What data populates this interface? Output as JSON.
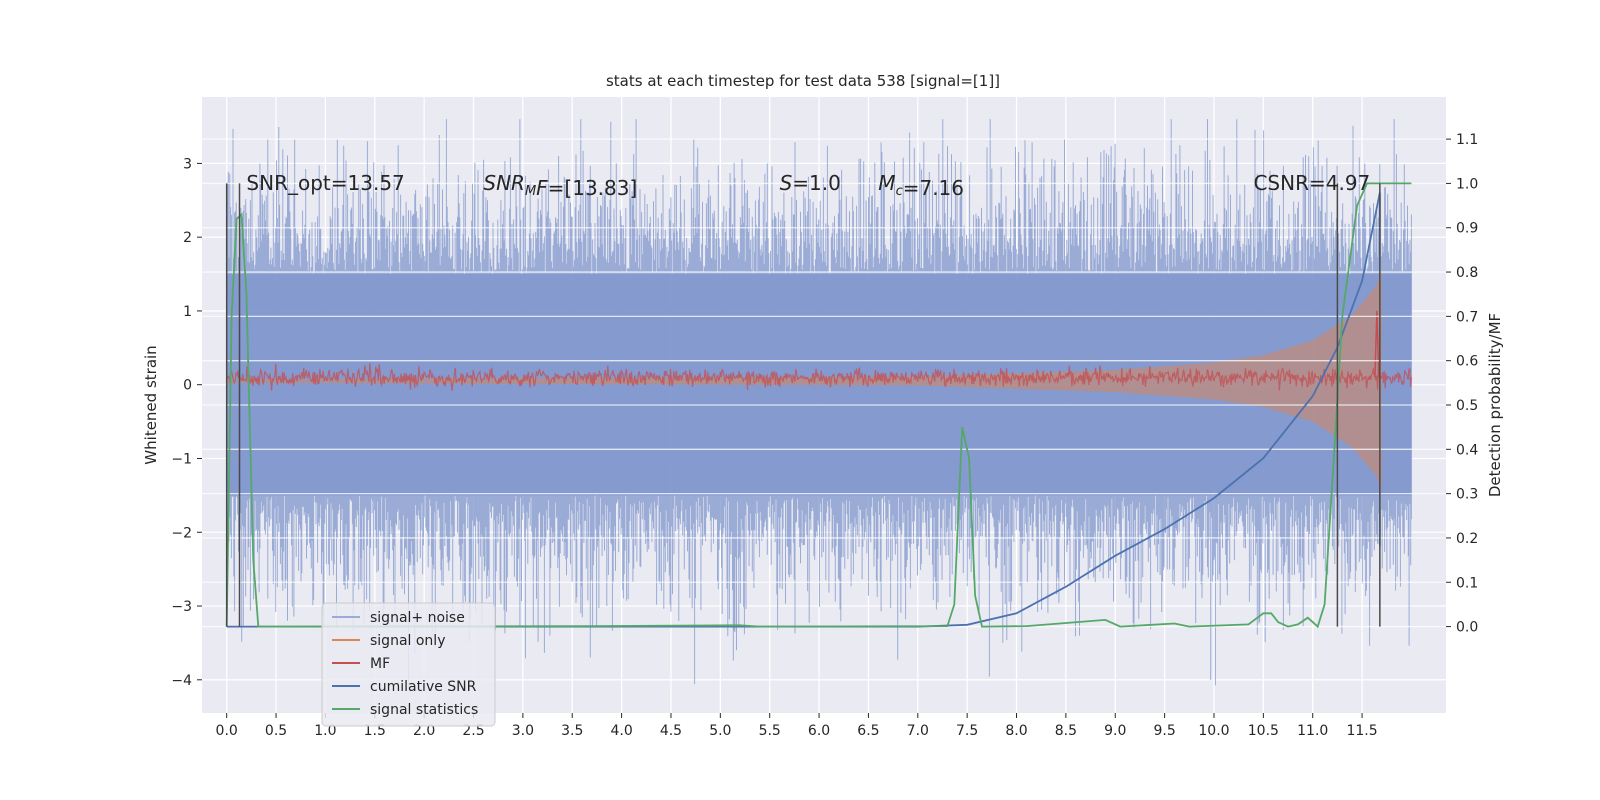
{
  "chart_data": {
    "type": "line",
    "title": "stats at each timestep for test data 538 [signal=[1]]",
    "ylabel": "Whitened strain",
    "ylabel_right": "Detection probability/MF",
    "xlim": [
      -0.25,
      12.35
    ],
    "ylim": [
      -4.45,
      3.9
    ],
    "ylim_right": [
      -0.195,
      1.195
    ],
    "x_ticks": [
      "0.0",
      "0.5",
      "1.0",
      "1.5",
      "2.0",
      "2.5",
      "3.0",
      "3.5",
      "4.0",
      "4.5",
      "5.0",
      "5.5",
      "6.0",
      "6.5",
      "7.0",
      "7.5",
      "8.0",
      "8.5",
      "9.0",
      "9.5",
      "10.0",
      "10.5",
      "11.0",
      "11.5"
    ],
    "y_ticks": [
      "−4",
      "−3",
      "−2",
      "−1",
      "0",
      "1",
      "2",
      "3"
    ],
    "y_right_ticks": [
      "0.0",
      "0.1",
      "0.2",
      "0.3",
      "0.4",
      "0.5",
      "0.6",
      "0.7",
      "0.8",
      "0.9",
      "1.0",
      "1.1"
    ],
    "grid": true,
    "legend_position": "lower-left",
    "annotations": [
      {
        "parts": [
          {
            "t": "SNR_opt=13.57",
            "i": false
          }
        ],
        "x": 0.2
      },
      {
        "parts": [
          {
            "t": "SNR",
            "i": true
          },
          {
            "t": "M",
            "i": true,
            "sub": true
          },
          {
            "t": "F",
            "i": true
          },
          {
            "t": "=[13.83]",
            "i": false
          }
        ],
        "x": 2.6
      },
      {
        "parts": [
          {
            "t": "S",
            "i": true
          },
          {
            "t": "=1.0",
            "i": false
          }
        ],
        "x": 5.6
      },
      {
        "parts": [
          {
            "t": "M",
            "i": true
          },
          {
            "t": "c",
            "i": true,
            "sub": true
          },
          {
            "t": "=7.16",
            "i": false
          }
        ],
        "x": 6.6
      },
      {
        "parts": [
          {
            "t": "CSNR=4.97",
            "i": false
          }
        ],
        "x": 10.4
      }
    ],
    "annotation_y": 2.75,
    "vlines": [
      0.0,
      0.13,
      11.25,
      11.68
    ],
    "series": [
      {
        "name": "signal+ noise",
        "color": "#7f96cc",
        "axis": "left",
        "style": "noise",
        "x_range": [
          0.0,
          12.0
        ],
        "envelope": [
          -1.5,
          1.5
        ],
        "peak": [
          -4.1,
          3.6
        ]
      },
      {
        "name": "signal only",
        "color": "#dd8452",
        "axis": "left",
        "style": "chirp",
        "x_range": [
          0.0,
          11.7
        ],
        "amplitude_points": [
          [
            0.0,
            0.02
          ],
          [
            7.0,
            0.06
          ],
          [
            9.0,
            0.15
          ],
          [
            10.0,
            0.25
          ],
          [
            10.5,
            0.35
          ],
          [
            11.0,
            0.55
          ],
          [
            11.4,
            0.9
          ],
          [
            11.65,
            1.3
          ],
          [
            11.7,
            1.5
          ]
        ]
      },
      {
        "name": "MF",
        "color": "#c44e52",
        "axis": "left",
        "style": "band",
        "x_range": [
          0.0,
          12.0
        ],
        "mean": 0.1,
        "spread": 0.1,
        "spike": [
          11.65,
          1.0
        ]
      },
      {
        "name": "cumilative SNR",
        "color": "#4c72b0",
        "axis": "right",
        "points": [
          [
            0.0,
            0.0
          ],
          [
            7.0,
            0.0
          ],
          [
            7.5,
            0.004
          ],
          [
            8.0,
            0.03
          ],
          [
            8.5,
            0.09
          ],
          [
            9.0,
            0.16
          ],
          [
            9.5,
            0.22
          ],
          [
            10.0,
            0.29
          ],
          [
            10.5,
            0.38
          ],
          [
            11.0,
            0.52
          ],
          [
            11.25,
            0.63
          ],
          [
            11.5,
            0.78
          ],
          [
            11.68,
            0.98
          ]
        ]
      },
      {
        "name": "signal statistics",
        "color": "#55a868",
        "axis": "right",
        "points": [
          [
            0.0,
            0.0
          ],
          [
            0.05,
            0.7
          ],
          [
            0.1,
            0.92
          ],
          [
            0.15,
            0.93
          ],
          [
            0.2,
            0.75
          ],
          [
            0.27,
            0.15
          ],
          [
            0.32,
            0.0
          ],
          [
            3.7,
            0.001
          ],
          [
            5.2,
            0.003
          ],
          [
            5.4,
            0.0
          ],
          [
            7.3,
            0.001
          ],
          [
            7.37,
            0.05
          ],
          [
            7.45,
            0.45
          ],
          [
            7.52,
            0.38
          ],
          [
            7.58,
            0.07
          ],
          [
            7.65,
            0.0
          ],
          [
            8.1,
            0.001
          ],
          [
            8.9,
            0.015
          ],
          [
            9.05,
            0.0
          ],
          [
            9.6,
            0.007
          ],
          [
            9.75,
            0.0
          ],
          [
            10.35,
            0.005
          ],
          [
            10.5,
            0.03
          ],
          [
            10.58,
            0.03
          ],
          [
            10.65,
            0.01
          ],
          [
            10.75,
            0.0
          ],
          [
            10.85,
            0.005
          ],
          [
            10.95,
            0.02
          ],
          [
            11.05,
            0.0
          ],
          [
            11.12,
            0.05
          ],
          [
            11.22,
            0.4
          ],
          [
            11.3,
            0.7
          ],
          [
            11.45,
            0.95
          ],
          [
            11.55,
            1.0
          ],
          [
            12.0,
            1.0
          ]
        ]
      }
    ]
  }
}
